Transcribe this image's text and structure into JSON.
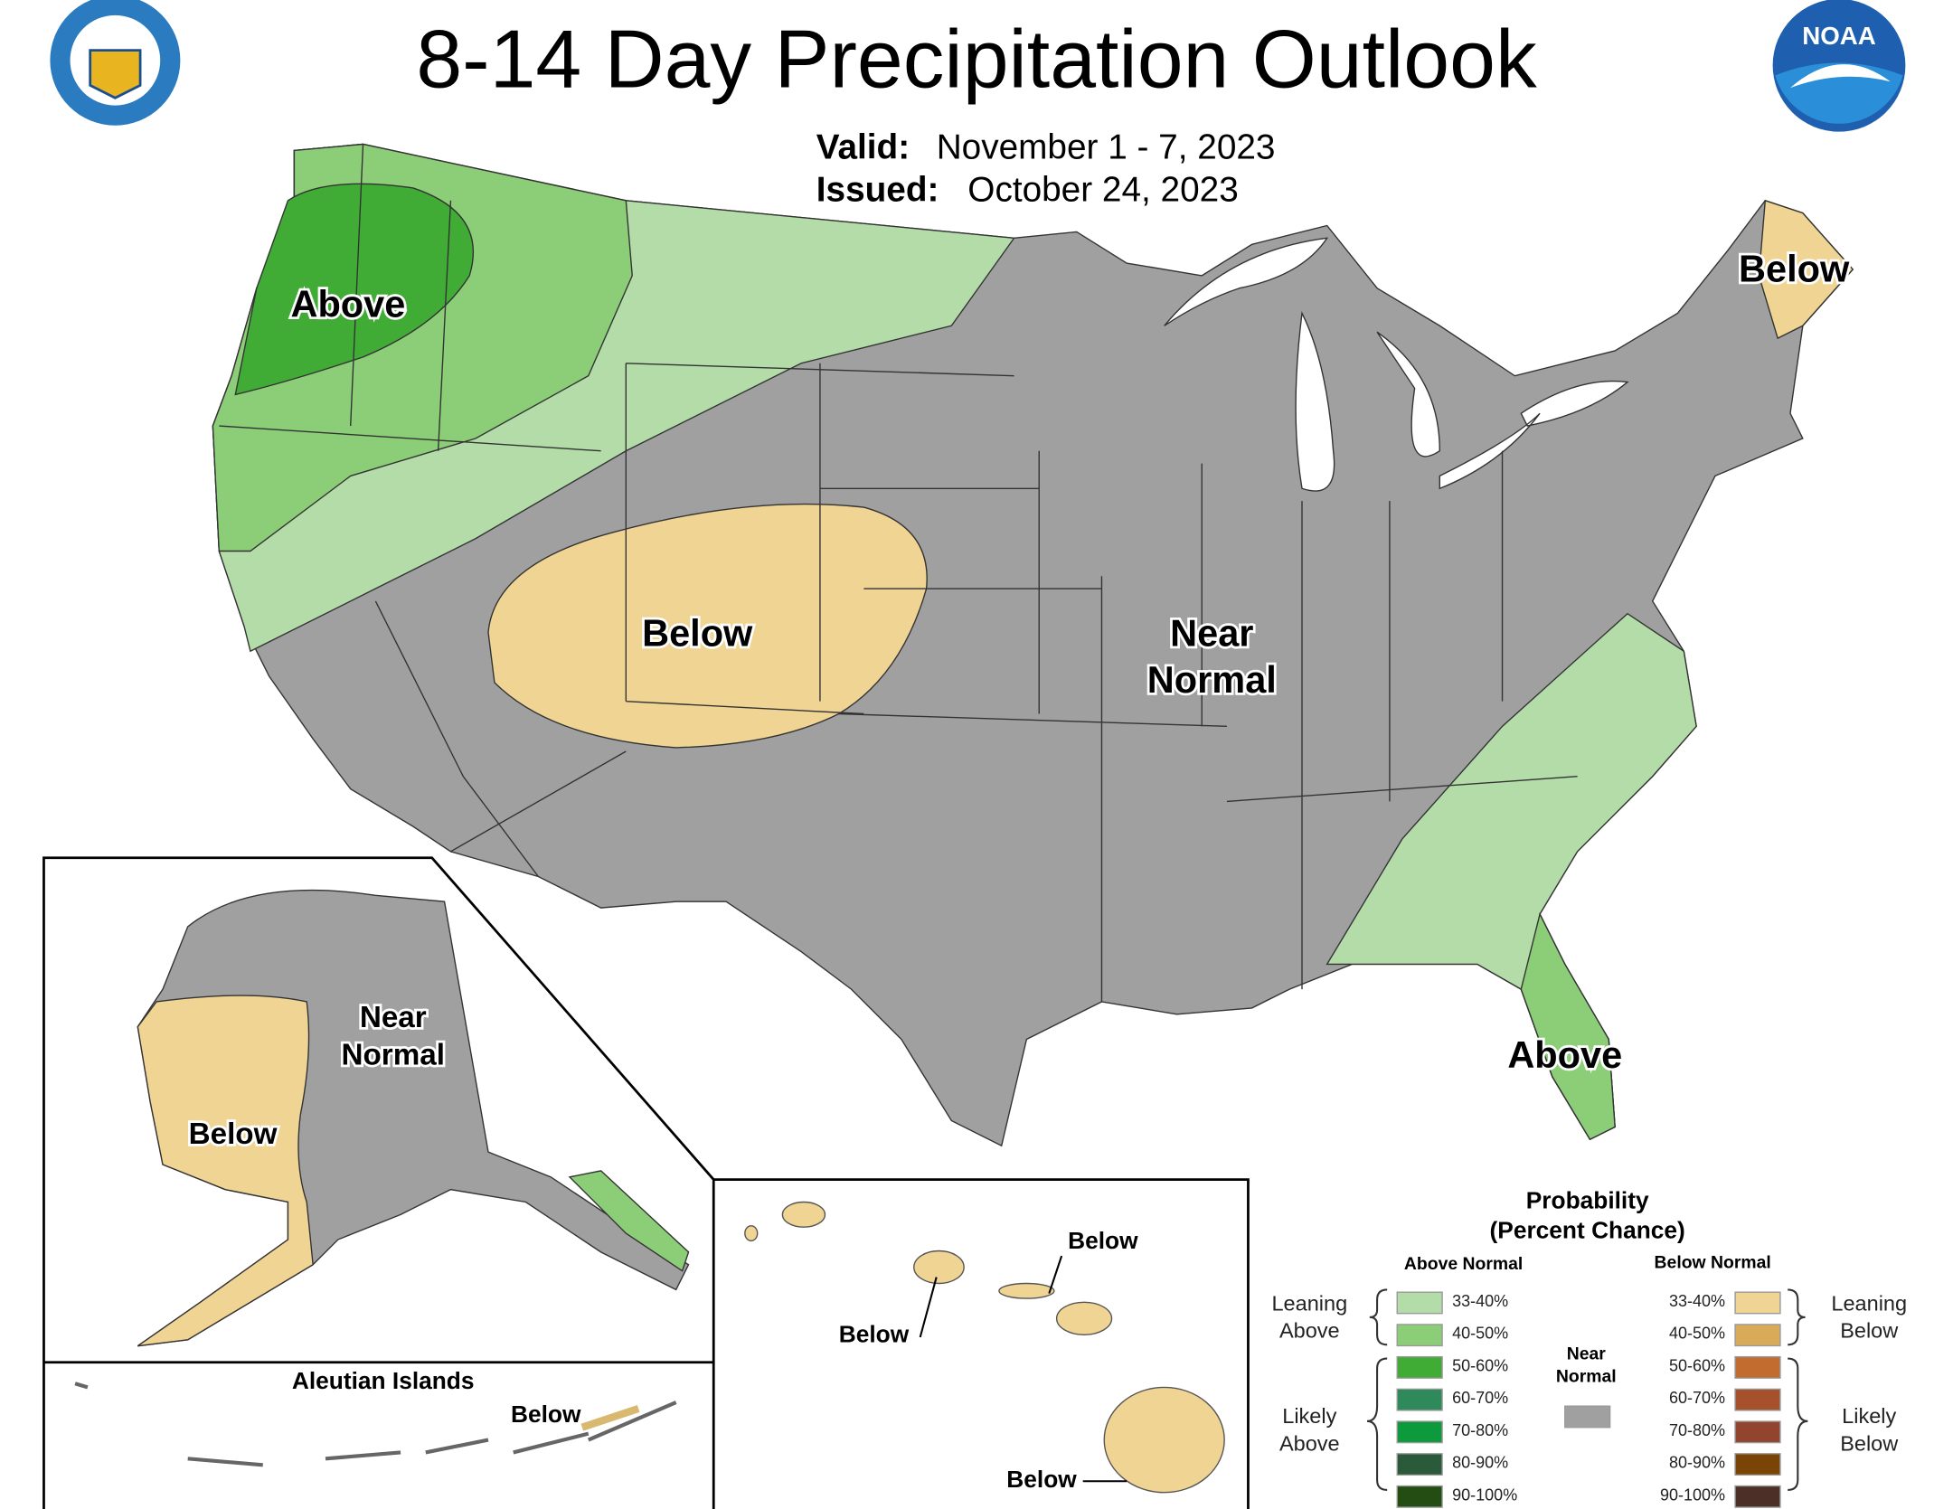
{
  "header": {
    "title": "8-14 Day Precipitation Outlook",
    "valid_label": "Valid:",
    "valid": "November 1 - 7, 2023",
    "issued_label": "Issued:",
    "issued": "October 24, 2023",
    "noaa_logo": "NOAA"
  },
  "map_labels": {
    "west_above": "Above",
    "central_below": "Below",
    "near_normal": [
      "Near",
      "Normal"
    ],
    "maine_below": "Below",
    "florida_above": "Above"
  },
  "alaska": {
    "near_normal": [
      "Near",
      "Normal"
    ],
    "below": "Below"
  },
  "aleutian": {
    "title": "Aleutian Islands",
    "below": "Below"
  },
  "hawaii": {
    "labels": [
      "Below",
      "Below",
      "Below"
    ]
  },
  "legend": {
    "title": [
      "Probability",
      "(Percent Chance)"
    ],
    "above_header": "Above Normal",
    "below_header": "Below Normal",
    "above": [
      {
        "label": "33-40%",
        "color": "#b3dca8"
      },
      {
        "label": "40-50%",
        "color": "#8ccd78"
      },
      {
        "label": "50-60%",
        "color": "#40ac36"
      },
      {
        "label": "60-70%",
        "color": "#2e8a5a"
      },
      {
        "label": "70-80%",
        "color": "#0c9a3c"
      },
      {
        "label": "80-90%",
        "color": "#2a5a3a"
      },
      {
        "label": "90-100%",
        "color": "#244d14"
      }
    ],
    "below": [
      {
        "label": "33-40%",
        "color": "#f0d494"
      },
      {
        "label": "40-50%",
        "color": "#d9ab58"
      },
      {
        "label": "50-60%",
        "color": "#c36c30"
      },
      {
        "label": "60-70%",
        "color": "#a7502c"
      },
      {
        "label": "70-80%",
        "color": "#93442e"
      },
      {
        "label": "80-90%",
        "color": "#7a4406"
      },
      {
        "label": "90-100%",
        "color": "#4c3028"
      }
    ],
    "near_normal": {
      "label": [
        "Near",
        "Normal"
      ],
      "color": "#a0a0a0"
    },
    "leaning_above": [
      "Leaning",
      "Above"
    ],
    "likely_above": [
      "Likely",
      "Above"
    ],
    "leaning_below": [
      "Leaning",
      "Below"
    ],
    "likely_below": [
      "Likely",
      "Below"
    ]
  }
}
